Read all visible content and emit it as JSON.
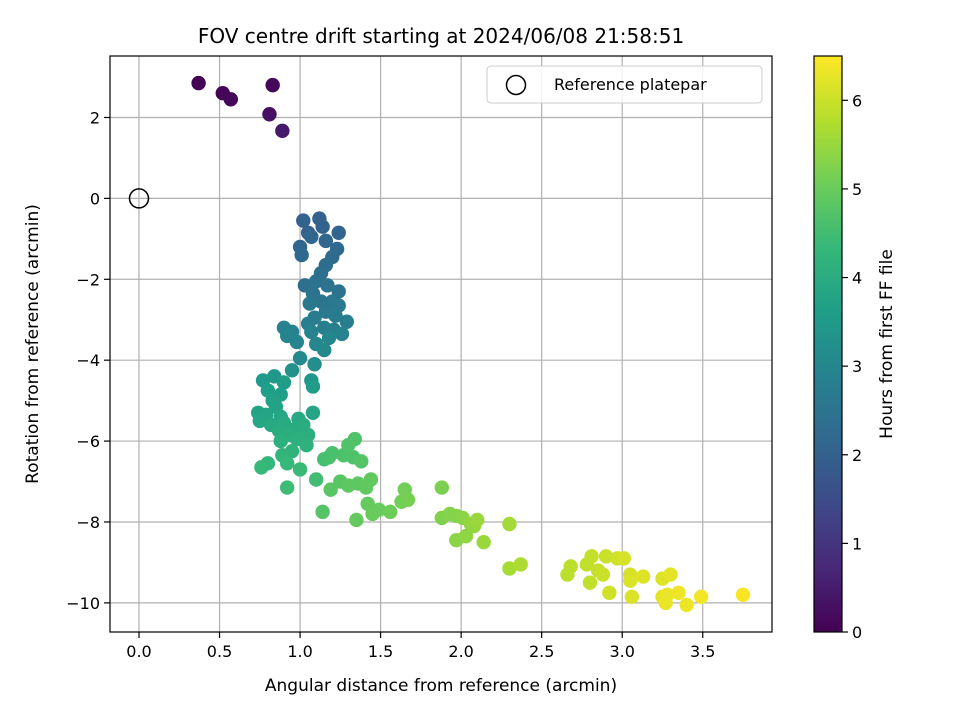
{
  "chart_data": {
    "type": "scatter",
    "title": "FOV centre drift starting at 2024/06/08 21:58:51",
    "xlabel": "Angular distance from reference (arcmin)",
    "ylabel": "Rotation from reference (arcmin)",
    "xlim": [
      -0.18,
      3.93
    ],
    "ylim": [
      -10.72,
      3.52
    ],
    "xticks": [
      0.0,
      0.5,
      1.0,
      1.5,
      2.0,
      2.5,
      3.0,
      3.5
    ],
    "xtick_labels": [
      "0.0",
      "0.5",
      "1.0",
      "1.5",
      "2.0",
      "2.5",
      "3.0",
      "3.5"
    ],
    "yticks": [
      2,
      0,
      -2,
      -4,
      -6,
      -8,
      -10
    ],
    "ytick_labels": [
      "2",
      "0",
      "−2",
      "−4",
      "−6",
      "−8",
      "−10"
    ],
    "grid": true,
    "legend": {
      "placement": "top-right",
      "entries": [
        "Reference platepar"
      ]
    },
    "reference_point": {
      "x": 0.0,
      "y": 0.0,
      "marker": "open-circle"
    },
    "colorbar": {
      "label": "Hours from first FF file",
      "colormap": "viridis",
      "range": [
        0,
        6.5
      ],
      "ticks": [
        0,
        1,
        2,
        3,
        4,
        5,
        6
      ],
      "tick_labels": [
        "0",
        "1",
        "2",
        "3",
        "4",
        "5",
        "6"
      ]
    },
    "series": [
      {
        "marker": "filled-circle",
        "points": [
          [
            0.37,
            2.85,
            0.05
          ],
          [
            0.52,
            2.6,
            0.1
          ],
          [
            0.57,
            2.45,
            0.12
          ],
          [
            0.83,
            2.8,
            0.15
          ],
          [
            0.81,
            2.08,
            0.3
          ],
          [
            0.89,
            1.67,
            0.45
          ],
          [
            1.02,
            -0.55,
            2.0
          ],
          [
            1.12,
            -0.5,
            2.0
          ],
          [
            1.05,
            -0.85,
            2.05
          ],
          [
            1.14,
            -0.7,
            2.05
          ],
          [
            1.24,
            -0.85,
            2.1
          ],
          [
            1.0,
            -1.2,
            2.1
          ],
          [
            1.07,
            -0.95,
            2.15
          ],
          [
            1.16,
            -1.05,
            2.15
          ],
          [
            1.01,
            -1.4,
            2.2
          ],
          [
            1.23,
            -1.25,
            2.2
          ],
          [
            1.2,
            -1.45,
            2.25
          ],
          [
            1.16,
            -1.65,
            2.3
          ],
          [
            1.13,
            -1.85,
            2.35
          ],
          [
            1.03,
            -2.15,
            2.4
          ],
          [
            1.1,
            -2.05,
            2.45
          ],
          [
            1.17,
            -2.15,
            2.45
          ],
          [
            1.08,
            -2.35,
            2.5
          ],
          [
            1.24,
            -2.3,
            2.5
          ],
          [
            1.13,
            -2.55,
            2.55
          ],
          [
            1.06,
            -2.6,
            2.6
          ],
          [
            1.2,
            -2.55,
            2.6
          ],
          [
            1.24,
            -2.65,
            2.65
          ],
          [
            1.16,
            -2.8,
            2.65
          ],
          [
            1.09,
            -2.95,
            2.7
          ],
          [
            1.22,
            -2.9,
            2.7
          ],
          [
            1.05,
            -3.1,
            2.75
          ],
          [
            1.29,
            -3.05,
            2.75
          ],
          [
            1.15,
            -3.2,
            2.8
          ],
          [
            1.21,
            -3.25,
            2.8
          ],
          [
            0.9,
            -3.2,
            2.85
          ],
          [
            0.95,
            -3.3,
            2.85
          ],
          [
            1.07,
            -3.3,
            2.9
          ],
          [
            1.26,
            -3.35,
            2.9
          ],
          [
            0.92,
            -3.4,
            2.95
          ],
          [
            0.98,
            -3.55,
            2.95
          ],
          [
            1.18,
            -3.45,
            3.0
          ],
          [
            1.1,
            -3.6,
            3.0
          ],
          [
            1.15,
            -3.75,
            3.05
          ],
          [
            1.0,
            -3.95,
            3.1
          ],
          [
            1.09,
            -4.1,
            3.2
          ],
          [
            0.95,
            -4.25,
            3.3
          ],
          [
            1.07,
            -4.5,
            3.4
          ],
          [
            0.84,
            -4.4,
            3.45
          ],
          [
            0.77,
            -4.5,
            3.5
          ],
          [
            0.9,
            -4.55,
            3.55
          ],
          [
            1.08,
            -4.65,
            3.55
          ],
          [
            0.8,
            -4.75,
            3.6
          ],
          [
            0.88,
            -4.85,
            3.65
          ],
          [
            0.83,
            -5.0,
            3.7
          ],
          [
            0.85,
            -5.15,
            3.75
          ],
          [
            0.74,
            -5.3,
            3.75
          ],
          [
            0.79,
            -5.35,
            3.8
          ],
          [
            1.08,
            -5.3,
            3.8
          ],
          [
            0.88,
            -5.4,
            3.85
          ],
          [
            0.75,
            -5.5,
            3.85
          ],
          [
            0.99,
            -5.45,
            3.9
          ],
          [
            0.82,
            -5.6,
            3.9
          ],
          [
            0.9,
            -5.55,
            3.95
          ],
          [
            0.97,
            -5.7,
            3.95
          ],
          [
            1.02,
            -5.6,
            4.0
          ],
          [
            0.87,
            -5.75,
            4.0
          ],
          [
            0.93,
            -5.85,
            4.05
          ],
          [
            1.05,
            -5.85,
            4.05
          ],
          [
            0.98,
            -5.95,
            4.1
          ],
          [
            0.88,
            -6.0,
            4.1
          ],
          [
            1.04,
            -6.1,
            4.15
          ],
          [
            0.95,
            -6.25,
            4.2
          ],
          [
            0.89,
            -6.35,
            4.25
          ],
          [
            0.8,
            -6.55,
            4.3
          ],
          [
            0.76,
            -6.65,
            4.35
          ],
          [
            0.92,
            -6.55,
            4.35
          ],
          [
            1.0,
            -6.7,
            4.4
          ],
          [
            0.92,
            -7.15,
            4.45
          ],
          [
            1.1,
            -6.95,
            4.5
          ],
          [
            1.15,
            -6.45,
            4.55
          ],
          [
            1.18,
            -6.4,
            4.6
          ],
          [
            1.2,
            -6.3,
            4.6
          ],
          [
            1.27,
            -6.35,
            4.65
          ],
          [
            1.33,
            -6.4,
            4.65
          ],
          [
            1.3,
            -6.1,
            4.7
          ],
          [
            1.34,
            -5.95,
            4.7
          ],
          [
            1.38,
            -6.5,
            4.75
          ],
          [
            1.14,
            -7.75,
            4.75
          ],
          [
            1.19,
            -7.2,
            4.8
          ],
          [
            1.25,
            -7.0,
            4.8
          ],
          [
            1.3,
            -7.1,
            4.85
          ],
          [
            1.36,
            -7.05,
            4.85
          ],
          [
            1.41,
            -7.15,
            4.9
          ],
          [
            1.44,
            -6.95,
            4.9
          ],
          [
            1.35,
            -7.95,
            4.95
          ],
          [
            1.42,
            -7.55,
            4.95
          ],
          [
            1.45,
            -7.8,
            5.0
          ],
          [
            1.49,
            -7.7,
            5.0
          ],
          [
            1.56,
            -7.75,
            5.05
          ],
          [
            1.63,
            -7.5,
            5.1
          ],
          [
            1.65,
            -7.2,
            5.1
          ],
          [
            1.67,
            -7.45,
            5.15
          ],
          [
            1.88,
            -7.15,
            5.2
          ],
          [
            1.88,
            -7.9,
            5.25
          ],
          [
            1.93,
            -7.8,
            5.3
          ],
          [
            1.97,
            -7.85,
            5.3
          ],
          [
            1.97,
            -8.45,
            5.35
          ],
          [
            2.01,
            -7.9,
            5.35
          ],
          [
            2.03,
            -8.35,
            5.4
          ],
          [
            2.06,
            -8.05,
            5.45
          ],
          [
            2.08,
            -8.1,
            5.45
          ],
          [
            2.1,
            -7.95,
            5.5
          ],
          [
            2.14,
            -8.5,
            5.5
          ],
          [
            2.3,
            -8.05,
            5.6
          ],
          [
            2.3,
            -9.15,
            5.65
          ],
          [
            2.37,
            -9.05,
            5.7
          ],
          [
            2.66,
            -9.3,
            5.85
          ],
          [
            2.68,
            -9.1,
            5.85
          ],
          [
            2.78,
            -9.05,
            5.9
          ],
          [
            2.8,
            -9.5,
            5.9
          ],
          [
            2.81,
            -8.85,
            5.95
          ],
          [
            2.85,
            -9.2,
            5.95
          ],
          [
            2.88,
            -9.3,
            6.0
          ],
          [
            2.9,
            -8.85,
            6.0
          ],
          [
            2.92,
            -9.75,
            6.05
          ],
          [
            2.97,
            -8.9,
            6.05
          ],
          [
            3.01,
            -8.9,
            6.1
          ],
          [
            3.05,
            -9.3,
            6.1
          ],
          [
            3.05,
            -9.45,
            6.15
          ],
          [
            3.06,
            -9.85,
            6.15
          ],
          [
            3.13,
            -9.35,
            6.2
          ],
          [
            3.25,
            -9.4,
            6.2
          ],
          [
            3.3,
            -9.3,
            6.25
          ],
          [
            3.25,
            -9.85,
            6.25
          ],
          [
            3.28,
            -9.8,
            6.3
          ],
          [
            3.27,
            -10.0,
            6.3
          ],
          [
            3.35,
            -9.75,
            6.35
          ],
          [
            3.4,
            -10.05,
            6.35
          ],
          [
            3.49,
            -9.85,
            6.4
          ],
          [
            3.75,
            -9.8,
            6.45
          ]
        ]
      }
    ]
  }
}
